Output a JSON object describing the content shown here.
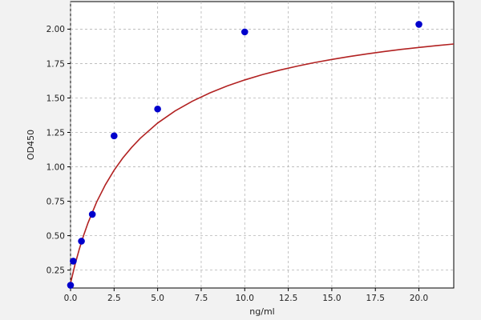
{
  "chart_data": {
    "type": "scatter",
    "title": "",
    "xlabel": "ng/ml",
    "ylabel": "OD450",
    "xlim": [
      0,
      22
    ],
    "ylim": [
      0.12,
      2.2
    ],
    "xticks": [
      0,
      2.5,
      5,
      7.5,
      10,
      12.5,
      15,
      17.5,
      20
    ],
    "xtick_labels": [
      "0.0",
      "2.5",
      "5.0",
      "7.5",
      "10.0",
      "12.5",
      "15.0",
      "17.5",
      "20.0"
    ],
    "yticks": [
      0.25,
      0.5,
      0.75,
      1.0,
      1.25,
      1.5,
      1.75,
      2.0
    ],
    "ytick_labels": [
      "0.25",
      "0.50",
      "0.75",
      "1.00",
      "1.25",
      "1.50",
      "1.75",
      "2.00"
    ],
    "grid": true,
    "points": {
      "x": [
        0,
        0.156,
        0.625,
        1.25,
        2.5,
        5,
        10,
        20
      ],
      "y": [
        0.14,
        0.315,
        0.46,
        0.655,
        1.225,
        1.42,
        1.98,
        2.035
      ],
      "color": "#0000cc"
    },
    "fit_curve": {
      "x": [
        0,
        0.25,
        0.5,
        0.75,
        1,
        1.5,
        2,
        2.5,
        3,
        3.5,
        4,
        5,
        6,
        7,
        8,
        9,
        10,
        11,
        12,
        13,
        14,
        15,
        16,
        17,
        18,
        19,
        20,
        21,
        22
      ],
      "y": [
        0.155,
        0.287,
        0.401,
        0.502,
        0.592,
        0.745,
        0.87,
        0.975,
        1.064,
        1.14,
        1.207,
        1.318,
        1.406,
        1.477,
        1.537,
        1.588,
        1.631,
        1.669,
        1.702,
        1.731,
        1.757,
        1.78,
        1.801,
        1.82,
        1.837,
        1.853,
        1.867,
        1.88,
        1.892
      ],
      "color": "#b22222"
    }
  }
}
